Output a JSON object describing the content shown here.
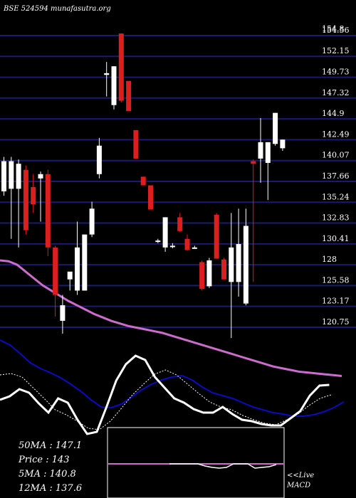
{
  "header": {
    "watermark": "BSE 524594  munafasutra.org"
  },
  "info": {
    "ma50": "50MA  : 147.1",
    "price": "Price   : 143",
    "ma5": "5MA  : 140.8",
    "ma12": "12MA : 137.6"
  },
  "macd_caption": {
    "live": "<<Live",
    "macd": "MACD"
  },
  "colors": {
    "up": "#ffffff",
    "down": "#dd1e1e",
    "grid": "#1a1a6e",
    "ma": "#cc6ccc",
    "macd_blue": "#0b0bbf",
    "macd_white": "#ffffff"
  },
  "chart_data": {
    "type": "candlestick",
    "title": "",
    "xlabel": "",
    "ylabel": "",
    "ylim": [
      120.0,
      155.6
    ],
    "yticks": [
      "154.8",
      "154.56",
      "152.15",
      "149.73",
      "147.32",
      "144.9",
      "142.49",
      "140.07",
      "137.66",
      "135.24",
      "132.83",
      "130.41",
      "128",
      "125.58",
      "123.17",
      "120.75"
    ],
    "ytick_values": [
      154.8,
      154.56,
      152.15,
      149.73,
      147.32,
      144.9,
      142.49,
      140.07,
      137.66,
      135.24,
      132.83,
      130.41,
      128,
      125.58,
      123.17,
      120.75
    ],
    "candles": [
      {
        "o": 136.5,
        "h": 140.5,
        "l": 136.0,
        "c": 140.0
      },
      {
        "o": 136.8,
        "h": 140.5,
        "l": 131.0,
        "c": 140.0
      },
      {
        "o": 136.8,
        "h": 140.2,
        "l": 130.0,
        "c": 139.7
      },
      {
        "o": 139.0,
        "h": 139.5,
        "l": 131.5,
        "c": 132.0
      },
      {
        "o": 137.0,
        "h": 138.5,
        "l": 134.0,
        "c": 135.0
      },
      {
        "o": 138.0,
        "h": 138.8,
        "l": 133.0,
        "c": 138.5
      },
      {
        "o": 138.5,
        "h": 139.0,
        "l": 129.0,
        "c": 130.0
      },
      {
        "o": 130.0,
        "h": 130.2,
        "l": 122.0,
        "c": 124.5
      },
      {
        "o": 121.5,
        "h": 124.5,
        "l": 120.0,
        "c": 123.3
      },
      {
        "o": 126.3,
        "h": 127.0,
        "l": 125.0,
        "c": 127.2
      },
      {
        "o": 125.0,
        "h": 133.0,
        "l": 124.5,
        "c": 130.0
      },
      {
        "o": 125.0,
        "h": 131.5,
        "l": 125.0,
        "c": 131.5
      },
      {
        "o": 131.5,
        "h": 135.3,
        "l": 131.2,
        "c": 134.5
      },
      {
        "o": 138.5,
        "h": 142.7,
        "l": 138.0,
        "c": 141.8
      },
      {
        "o": 150.0,
        "h": 151.5,
        "l": 147.5,
        "c": 150.2
      },
      {
        "o": 146.5,
        "h": 151.0,
        "l": 146.0,
        "c": 151.0
      },
      {
        "o": 154.8,
        "h": 154.8,
        "l": 146.8,
        "c": 147.0
      },
      {
        "o": 149.3,
        "h": 149.3,
        "l": 145.8,
        "c": 145.8
      },
      {
        "o": 143.6,
        "h": 143.6,
        "l": 140.3,
        "c": 140.3
      },
      {
        "o": 138.2,
        "h": 138.2,
        "l": 137.2,
        "c": 137.2
      },
      {
        "o": 137.2,
        "h": 137.2,
        "l": 134.4,
        "c": 134.4
      },
      {
        "o": 130.7,
        "h": 131.0,
        "l": 130.5,
        "c": 130.8
      },
      {
        "o": 130.0,
        "h": 133.5,
        "l": 129.5,
        "c": 133.5
      },
      {
        "o": 130.2,
        "h": 130.5,
        "l": 129.9,
        "c": 130.2
      },
      {
        "o": 133.5,
        "h": 134.0,
        "l": 131.8,
        "c": 131.9
      },
      {
        "o": 131.0,
        "h": 131.5,
        "l": 129.6,
        "c": 129.7
      },
      {
        "o": 130.0,
        "h": 130.2,
        "l": 129.9,
        "c": 130.0
      },
      {
        "o": 128.3,
        "h": 128.5,
        "l": 125.0,
        "c": 125.2
      },
      {
        "o": 125.5,
        "h": 128.8,
        "l": 125.3,
        "c": 128.5
      },
      {
        "o": 133.8,
        "h": 134.0,
        "l": 128.7,
        "c": 128.7
      },
      {
        "o": 128.6,
        "h": 128.8,
        "l": 126.3,
        "c": 126.3
      },
      {
        "o": 126.0,
        "h": 134.0,
        "l": 119.5,
        "c": 130.0
      },
      {
        "o": 126.0,
        "h": 134.5,
        "l": 124.3,
        "c": 130.4
      },
      {
        "o": 123.5,
        "h": 134.5,
        "l": 123.3,
        "c": 132.5
      },
      {
        "o": 140.0,
        "h": 140.2,
        "l": 126.0,
        "c": 139.7
      },
      {
        "o": 140.3,
        "h": 145.0,
        "l": 137.5,
        "c": 142.2
      },
      {
        "o": 139.8,
        "h": 142.2,
        "l": 135.5,
        "c": 142.2
      },
      {
        "o": 142.0,
        "h": 145.6,
        "l": 141.8,
        "c": 145.6
      },
      {
        "o": 141.5,
        "h": 142.5,
        "l": 141.2,
        "c": 142.5
      }
    ],
    "ma_line": [
      128.5,
      128.4,
      128.0,
      127.2,
      126.4,
      125.6,
      125.0,
      124.4,
      123.8,
      123.3,
      122.8,
      122.3,
      121.9,
      121.5,
      121.2,
      120.9,
      120.7,
      120.5,
      120.3,
      120.1,
      119.8,
      119.5,
      119.2,
      118.9,
      118.6,
      118.3,
      118.0,
      117.7,
      117.4,
      117.1,
      116.8,
      116.5,
      116.2,
      116.0,
      115.8,
      115.6,
      115.5,
      115.4,
      115.3,
      115.2,
      115.1
    ],
    "macd_blue": [
      478,
      485,
      497,
      510,
      518,
      524,
      531,
      540,
      550,
      562,
      572,
      573,
      568,
      558,
      548,
      540,
      534,
      530,
      528,
      534,
      544,
      552,
      556,
      560,
      566,
      572,
      576,
      580,
      582,
      585,
      585,
      583,
      579,
      573,
      565
    ],
    "macd_white": [
      562,
      557,
      547,
      552,
      567,
      580,
      560,
      566,
      590,
      610,
      607,
      572,
      535,
      512,
      500,
      506,
      530,
      545,
      560,
      566,
      575,
      580,
      580,
      572,
      582,
      590,
      592,
      596,
      598,
      598,
      588,
      578,
      556,
      542,
      541
    ],
    "macd_dotted": [
      527,
      525,
      530,
      545,
      560,
      576,
      583,
      592,
      602,
      604,
      592,
      574,
      555,
      540,
      526,
      520,
      527,
      540,
      553,
      565,
      572,
      576,
      584,
      590,
      595,
      597,
      590,
      582,
      570,
      560,
      555
    ],
    "hist_levels": [
      652,
      652,
      652,
      652,
      652,
      655,
      657,
      658,
      657,
      652,
      652,
      652,
      658,
      657,
      656,
      653
    ]
  }
}
